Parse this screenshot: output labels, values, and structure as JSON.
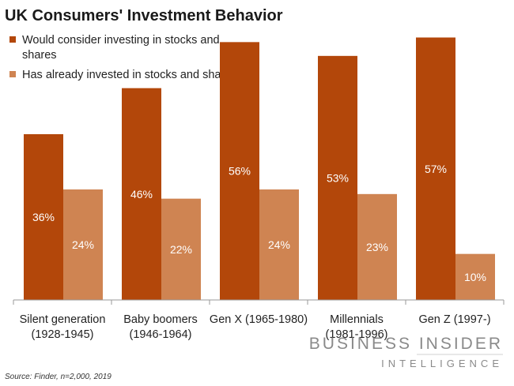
{
  "chart_data": {
    "type": "bar",
    "title": "UK Consumers' Investment Behavior",
    "categories": [
      [
        "Silent generation",
        "(1928-1945)"
      ],
      [
        "Baby boomers",
        "(1946-1964)"
      ],
      [
        "Gen X (1965-1980)",
        ""
      ],
      [
        "Millennials",
        "(1981-1996)"
      ],
      [
        "Gen Z (1997-)",
        ""
      ]
    ],
    "series": [
      {
        "name": "Would consider investing in stocks and shares",
        "legend_lines": [
          "Would consider investing in stocks and",
          "shares"
        ],
        "color": "#b3470a",
        "values": [
          36,
          46,
          56,
          53,
          57
        ],
        "labels": [
          "36%",
          "46%",
          "56%",
          "53%",
          "57%"
        ]
      },
      {
        "name": "Has already invested in stocks and shares",
        "legend_lines": [
          "Has already invested in stocks and shares"
        ],
        "color": "#cf8452",
        "values": [
          24,
          22,
          24,
          23,
          10
        ],
        "labels": [
          "24%",
          "22%",
          "24%",
          "23%",
          "10%"
        ]
      }
    ],
    "ylim": [
      0,
      60
    ],
    "grid": false,
    "legend": "top-left"
  },
  "source": "Source: Finder, n=2,000, 2019",
  "brand": {
    "line1": "BUSINESS INSIDER",
    "line2": "INTELLIGENCE"
  }
}
